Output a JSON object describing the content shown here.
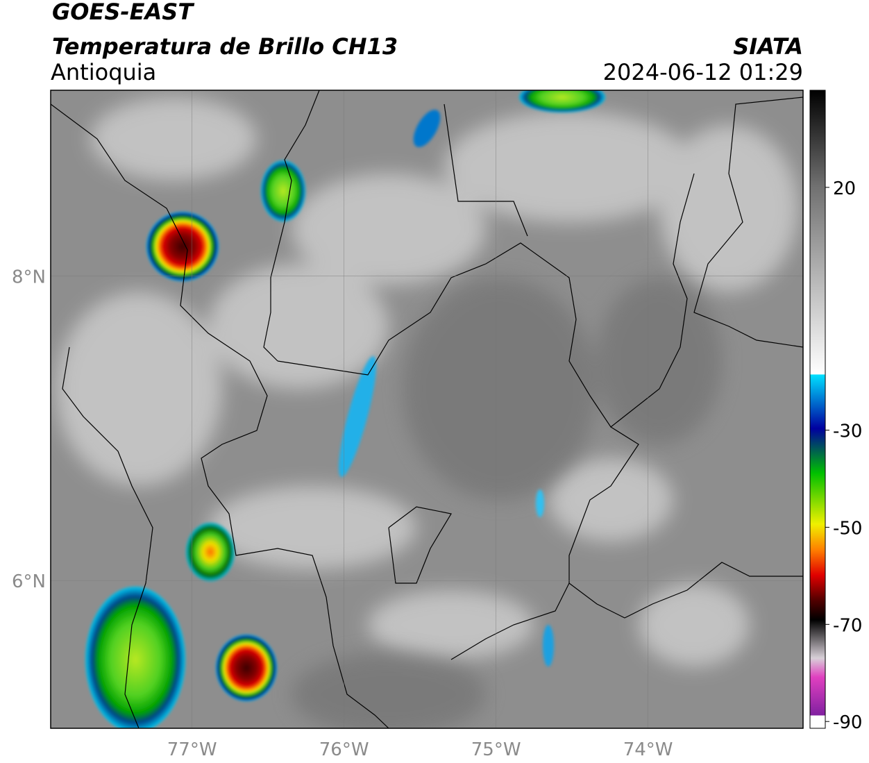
{
  "header": {
    "title": "GOES-EAST",
    "subtitle": "Temperatura de Brillo CH13",
    "region": "Antioquia",
    "source": "SIATA",
    "datetime": "2024-06-12 01:29"
  },
  "map": {
    "xlim": [
      -77.93,
      -72.98
    ],
    "ylim": [
      5.03,
      9.22
    ],
    "xticks": [
      {
        "value": -77,
        "label": "77°W"
      },
      {
        "value": -76,
        "label": "76°W"
      },
      {
        "value": -75,
        "label": "75°W"
      },
      {
        "value": -74,
        "label": "74°W"
      }
    ],
    "yticks": [
      {
        "value": 8,
        "label": "8°N"
      },
      {
        "value": 6,
        "label": "6°N"
      }
    ]
  },
  "colorbar": {
    "clim": [
      -91.4,
      40
    ],
    "ticks": [
      20,
      -30,
      -50,
      -70,
      -90
    ]
  }
}
